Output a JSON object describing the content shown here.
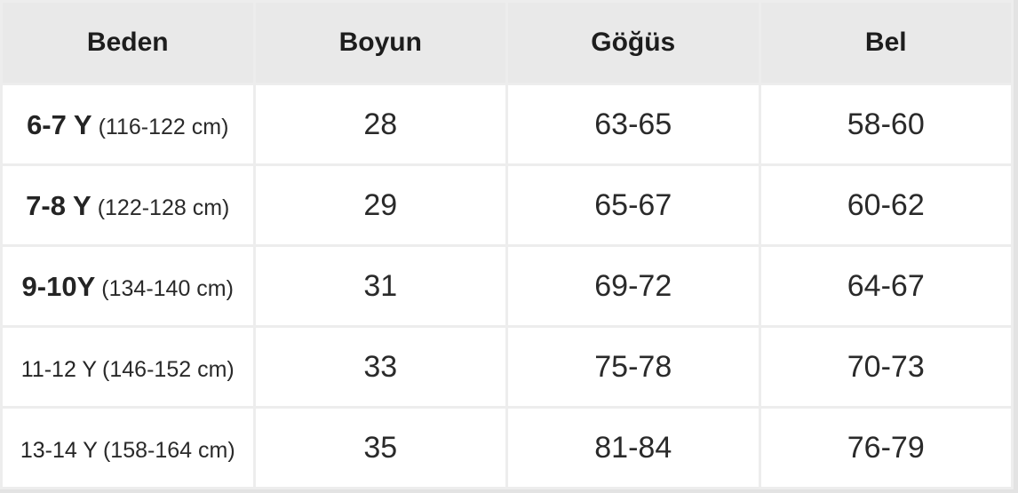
{
  "colors": {
    "page_background": "#e3e3e3",
    "header_background": "#e9e9e9",
    "cell_border": "#ededed",
    "outer_border": "#e0e0e0",
    "text": "#2a2a2a"
  },
  "table": {
    "columns": [
      "Beden",
      "Boyun",
      "Göğüs",
      "Bel"
    ],
    "rows": [
      {
        "size_main": "6-7 Y",
        "size_detail": "(116-122 cm)",
        "boyun": "28",
        "gogus": "63-65",
        "bel": "58-60"
      },
      {
        "size_main": "7-8 Y",
        "size_detail": "(122-128 cm)",
        "boyun": "29",
        "gogus": "65-67",
        "bel": "60-62"
      },
      {
        "size_main": "9-10Y",
        "size_detail": "(134-140 cm)",
        "boyun": "31",
        "gogus": "69-72",
        "bel": "64-67"
      },
      {
        "size_main": "11-12 Y",
        "size_detail": "(146-152 cm)",
        "boyun": "33",
        "gogus": "75-78",
        "bel": "70-73"
      },
      {
        "size_main": "13-14 Y",
        "size_detail": "(158-164 cm)",
        "boyun": "35",
        "gogus": "81-84",
        "bel": "76-79"
      }
    ]
  },
  "chart_data": {
    "type": "table",
    "title": "",
    "columns": [
      "Beden",
      "Boyun",
      "Göğüs",
      "Bel"
    ],
    "rows": [
      [
        "6-7 Y (116-122 cm)",
        "28",
        "63-65",
        "58-60"
      ],
      [
        "7-8 Y (122-128 cm)",
        "29",
        "65-67",
        "60-62"
      ],
      [
        "9-10Y (134-140 cm)",
        "31",
        "69-72",
        "64-67"
      ],
      [
        "11-12 Y (146-152 cm)",
        "33",
        "75-78",
        "70-73"
      ],
      [
        "13-14 Y (158-164 cm)",
        "35",
        "81-84",
        "76-79"
      ]
    ]
  }
}
